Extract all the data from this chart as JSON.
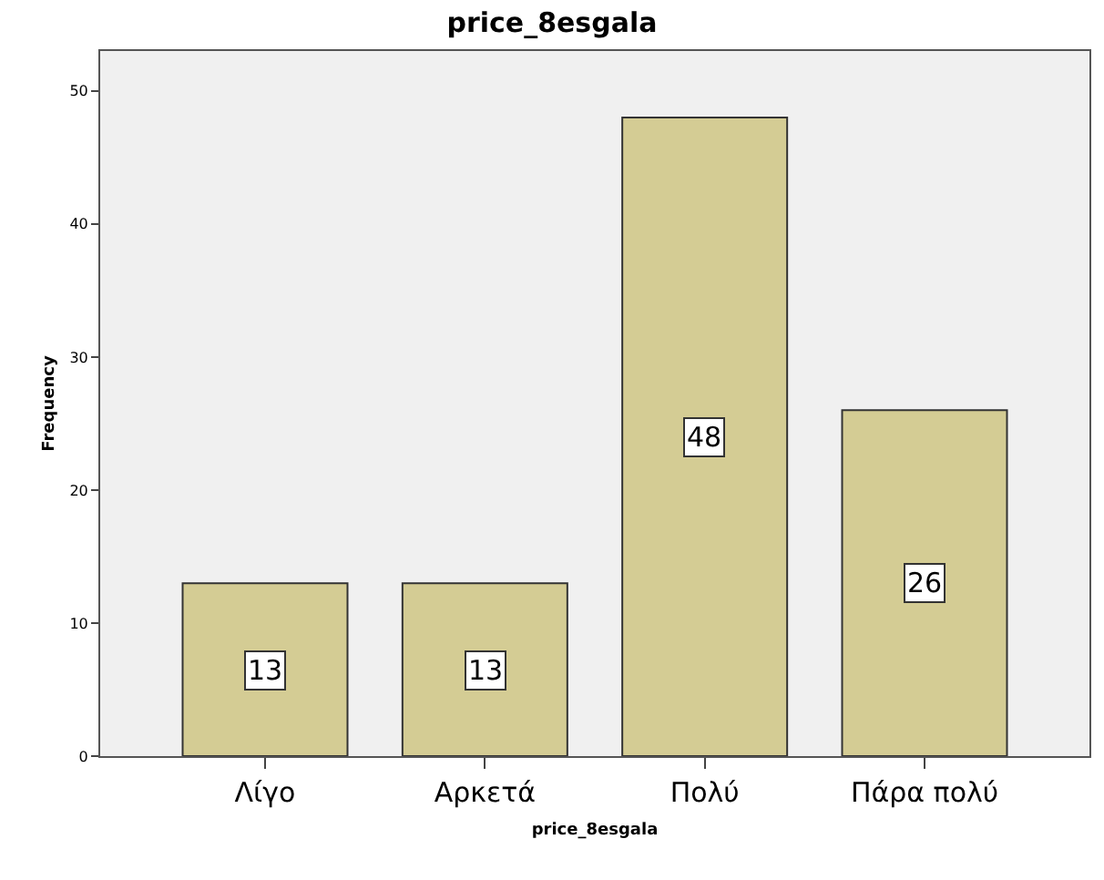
{
  "chart_data": {
    "type": "bar",
    "title": "price_8esgala",
    "xlabel": "price_8esgala",
    "ylabel": "Frequency",
    "categories": [
      "Λίγο",
      "Αρκετά",
      "Πολύ",
      "Πάρα πολύ"
    ],
    "values": [
      13,
      13,
      48,
      26
    ],
    "color": "#d4cc94",
    "ylim": [
      0,
      53
    ],
    "yticks": [
      0,
      10,
      20,
      30,
      40,
      50
    ],
    "grid": false,
    "data_labels": true
  }
}
